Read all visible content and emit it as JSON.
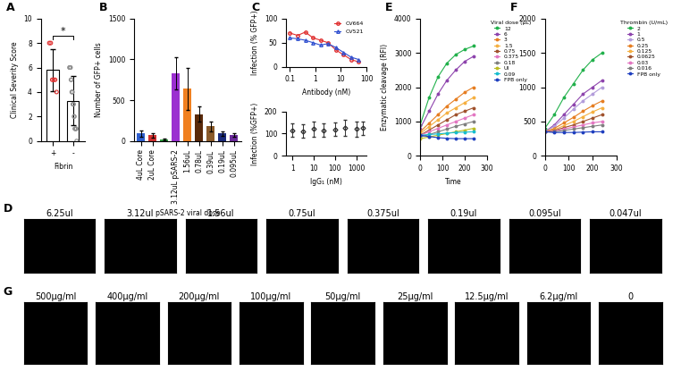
{
  "chart_data": [
    {
      "type": "bar",
      "title": "A",
      "xlabel": "Fibrin",
      "ylabel": "Clinical Severity Score",
      "categories": [
        "+",
        "-"
      ],
      "values": [
        5.8,
        3.3
      ],
      "errors": [
        1.7,
        2.0
      ],
      "points": [
        [
          8,
          8,
          5,
          5,
          5,
          4
        ],
        [
          6,
          6,
          6,
          6,
          5,
          5,
          4,
          4,
          4,
          3,
          3,
          3,
          2,
          2,
          1,
          1,
          1,
          1,
          1,
          0
        ]
      ],
      "point_colors": [
        "#e03030",
        "#909090"
      ],
      "color": "#ffffff",
      "annotations": [
        {
          "text": "*"
        }
      ],
      "ylim": [
        0,
        10
      ],
      "yticks": [
        0,
        2,
        4,
        6,
        8,
        10
      ]
    },
    {
      "type": "bar",
      "title": "B",
      "xlabel": "pSARS-2 viral dose",
      "ylabel": "Number of GFP+ cells",
      "categories": [
        "4uL Core",
        "2uL Core",
        null,
        "3.12uL pSARS-2",
        "1.56uL",
        "0.78uL",
        "0.39uL",
        "0.19uL",
        "0.095uL"
      ],
      "values": [
        90,
        70,
        20,
        830,
        640,
        330,
        180,
        90,
        70
      ],
      "errors": [
        40,
        30,
        10,
        200,
        260,
        90,
        60,
        30,
        20
      ],
      "colors": [
        "#2f5fd0",
        "#d03030",
        "#30a040",
        "#9b30d0",
        "#f08020",
        "#5a2a0a",
        "#8a5a2a",
        "#1a2a7a",
        "#6a2a9a"
      ],
      "ylim": [
        0,
        1500
      ],
      "yticks": [
        0,
        500,
        1000,
        1500
      ]
    },
    {
      "type": "line",
      "title": "C",
      "xlabel": "Antibody (nM)",
      "ylabel": "Infection (% GFP+)",
      "log": "x",
      "legend": "upper right",
      "marker": "o",
      "series": [
        {
          "name": "CV664",
          "color": "#e03030",
          "marker": "o",
          "x": [
            0.1,
            0.2,
            0.4,
            0.8,
            1.6,
            3.1,
            6.3,
            12.5,
            25,
            50
          ],
          "values": [
            70,
            65,
            72,
            60,
            55,
            50,
            35,
            25,
            15,
            10
          ]
        },
        {
          "name": "CV521",
          "color": "#3050d0",
          "marker": "^",
          "x": [
            0.1,
            0.2,
            0.4,
            0.8,
            1.6,
            3.1,
            6.3,
            12.5,
            25,
            50
          ],
          "values": [
            60,
            58,
            55,
            50,
            45,
            48,
            40,
            30,
            20,
            15
          ]
        }
      ],
      "xlim": [
        0.07,
        100
      ],
      "xticks": [
        0.1,
        1,
        10,
        100
      ],
      "ylim": [
        0,
        100
      ],
      "yticks": [
        0,
        50,
        100
      ]
    },
    {
      "type": "scatter",
      "xlabel": "IgG₁ (nM)",
      "ylabel": "Infection (%GFP+)",
      "log": "x",
      "marker": "D",
      "color": "#333333",
      "x": [
        1,
        3,
        10,
        30,
        100,
        300,
        1000,
        2000
      ],
      "values": [
        115,
        110,
        120,
        115,
        118,
        125,
        120,
        125
      ],
      "errors": [
        30,
        30,
        35,
        30,
        30,
        35,
        35,
        30
      ],
      "xlim": [
        0.5,
        3000
      ],
      "xticks": [
        1,
        10,
        100,
        1000
      ],
      "ylim": [
        0,
        200
      ],
      "yticks": [
        0,
        100,
        200
      ]
    },
    {
      "type": "line",
      "title": "E",
      "xlabel": "Time",
      "ylabel": "Enzymatic cleavage (RFI)",
      "legend": "upper left",
      "marker": "o",
      "annotations": [
        {
          "text": "Viral dose (μL)"
        }
      ],
      "x": [
        0,
        40,
        80,
        120,
        160,
        200,
        240
      ],
      "series": [
        {
          "name": "12",
          "color": "#22b14c",
          "values": [
            900,
            1700,
            2300,
            2700,
            2950,
            3100,
            3200
          ]
        },
        {
          "name": "6",
          "color": "#8e44ad",
          "values": [
            800,
            1300,
            1800,
            2200,
            2500,
            2750,
            2900
          ]
        },
        {
          "name": "3",
          "color": "#e67e22",
          "values": [
            700,
            950,
            1200,
            1450,
            1650,
            1850,
            2000
          ]
        },
        {
          "name": "1.5",
          "color": "#f5b041",
          "values": [
            650,
            850,
            1050,
            1250,
            1400,
            1550,
            1700
          ]
        },
        {
          "name": "0.75",
          "color": "#a0522d",
          "values": [
            600,
            750,
            900,
            1050,
            1200,
            1300,
            1400
          ]
        },
        {
          "name": "0.375",
          "color": "#e377c2",
          "values": [
            600,
            700,
            800,
            900,
            1000,
            1100,
            1200
          ]
        },
        {
          "name": "0.18",
          "color": "#7f7f7f",
          "values": [
            550,
            620,
            700,
            780,
            860,
            930,
            1000
          ]
        },
        {
          "name": "UI",
          "color": "#bcbd22",
          "values": [
            500,
            550,
            600,
            650,
            700,
            750,
            800
          ]
        },
        {
          "name": "0.09",
          "color": "#17becf",
          "values": [
            600,
            620,
            640,
            660,
            680,
            690,
            700
          ]
        },
        {
          "name": "FPB only",
          "color": "#1f3fbf",
          "values": [
            600,
            560,
            530,
            510,
            500,
            500,
            500
          ]
        }
      ],
      "xlim": [
        0,
        300
      ],
      "xticks": [
        0,
        100,
        200,
        300
      ],
      "ylim": [
        0,
        4000
      ],
      "yticks": [
        0,
        1000,
        2000,
        3000,
        4000
      ]
    },
    {
      "type": "line",
      "title": "F",
      "legend": "upper left",
      "marker": "o",
      "annotations": [
        {
          "text": "Thrombin (U/mL)"
        }
      ],
      "x": [
        0,
        40,
        80,
        120,
        160,
        200,
        240
      ],
      "series": [
        {
          "name": "2",
          "color": "#22b14c",
          "values": [
            400,
            600,
            850,
            1050,
            1250,
            1400,
            1500
          ]
        },
        {
          "name": "1",
          "color": "#8e44ad",
          "values": [
            350,
            450,
            600,
            750,
            900,
            1000,
            1100
          ]
        },
        {
          "name": "0.5",
          "color": "#b39ddb",
          "values": [
            350,
            430,
            550,
            680,
            800,
            900,
            1000
          ]
        },
        {
          "name": "0.25",
          "color": "#e67e22",
          "values": [
            350,
            400,
            480,
            560,
            650,
            730,
            800
          ]
        },
        {
          "name": "0.125",
          "color": "#f5b041",
          "values": [
            350,
            380,
            440,
            500,
            570,
            640,
            700
          ]
        },
        {
          "name": "0.0625",
          "color": "#a0522d",
          "values": [
            350,
            370,
            410,
            450,
            500,
            550,
            600
          ]
        },
        {
          "name": "0.03",
          "color": "#e377c2",
          "values": [
            350,
            360,
            390,
            420,
            450,
            480,
            500
          ]
        },
        {
          "name": "0.016",
          "color": "#7f7f7f",
          "values": [
            350,
            350,
            370,
            390,
            410,
            430,
            450
          ]
        },
        {
          "name": "FPB only",
          "color": "#1f3fbf",
          "values": [
            350,
            340,
            340,
            340,
            345,
            350,
            350
          ]
        }
      ],
      "xlim": [
        0,
        300
      ],
      "xticks": [
        0,
        100,
        200,
        300
      ],
      "ylim": [
        0,
        2000
      ],
      "yticks": [
        0,
        500,
        1000,
        1500,
        2000
      ]
    }
  ],
  "image_rows": [
    {
      "title": "D",
      "labels": [
        "6.25ul",
        "3.12ul",
        "1.56ul",
        "0.75ul",
        "0.375ul",
        "0.19ul",
        "0.095ul",
        "0.047ul"
      ]
    },
    {
      "title": "G",
      "labels": [
        "500µg/ml",
        "400µg/ml",
        "200µg/ml",
        "100µg/ml",
        "50µg/ml",
        "25µg/ml",
        "12.5µg/ml",
        "6.2µg/ml",
        "0"
      ]
    }
  ]
}
